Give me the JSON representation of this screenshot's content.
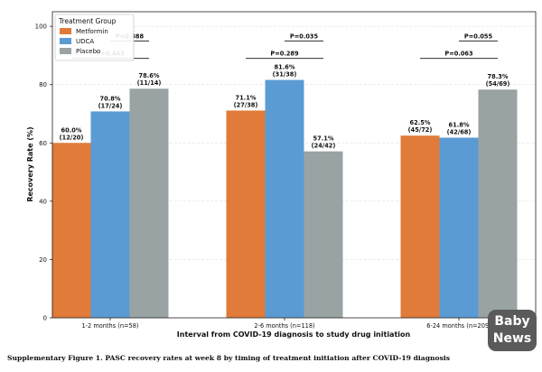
{
  "chart_data": {
    "type": "bar",
    "ylabel": "Recovery Rate (%)",
    "xlabel": "Interval from COVID-19 diagnosis to study drug initiation",
    "ylim": [
      0,
      105
    ],
    "yticks": [
      0,
      20,
      40,
      60,
      80,
      100
    ],
    "grid": true,
    "legend_position": "top-left",
    "legend_title": "Treatment Group",
    "categories": [
      "1-2 months (n=58)",
      "2-6 months (n=118)",
      "6-24 months (n=209)"
    ],
    "series": [
      {
        "name": "Metformin",
        "color": "#e07b39",
        "values": [
          60.0,
          71.1,
          62.5
        ],
        "labels": [
          "60.0%",
          "71.1%",
          "62.5%"
        ],
        "counts": [
          "(12/20)",
          "(27/38)",
          "(45/72)"
        ]
      },
      {
        "name": "UDCA",
        "color": "#5a9bd4",
        "values": [
          70.8,
          81.6,
          61.8
        ],
        "labels": [
          "70.8%",
          "81.6%",
          "61.8%"
        ],
        "counts": [
          "(17/24)",
          "(31/38)",
          "(42/68)"
        ]
      },
      {
        "name": "Placebo",
        "color": "#9aa3a3",
        "values": [
          78.6,
          57.1,
          78.3
        ],
        "labels": [
          "78.6%",
          "57.1%",
          "78.3%"
        ],
        "counts": [
          "(11/14)",
          "(24/42)",
          "(54/69)"
        ]
      }
    ],
    "pvalues": [
      {
        "category": 0,
        "text": "P=0.443",
        "from": 0,
        "to": 2,
        "y": 89
      },
      {
        "category": 0,
        "text": "P=0.888",
        "from": 1,
        "to": 2,
        "y": 95
      },
      {
        "category": 1,
        "text": "P=0.289",
        "from": 0,
        "to": 2,
        "y": 89
      },
      {
        "category": 1,
        "text": "P=0.035",
        "from": 1,
        "to": 2,
        "y": 95
      },
      {
        "category": 2,
        "text": "P=0.063",
        "from": 0,
        "to": 2,
        "y": 89
      },
      {
        "category": 2,
        "text": "P=0.055",
        "from": 1,
        "to": 2,
        "y": 95
      }
    ]
  },
  "caption": "Supplementary Figure 1. PASC recovery rates at week 8 by timing of treatment initiation after COVID-19 diagnosis",
  "watermark": {
    "line1": "Baby",
    "line2": "News"
  }
}
